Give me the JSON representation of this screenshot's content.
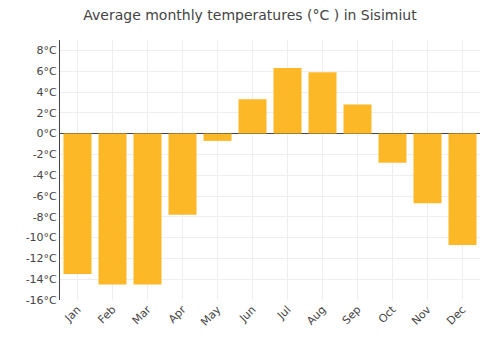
{
  "chart_data": {
    "type": "bar",
    "title": "Average monthly temperatures (°C ) in Sisimiut",
    "categories": [
      "Jan",
      "Feb",
      "Mar",
      "Apr",
      "May",
      "Jun",
      "Jul",
      "Aug",
      "Sep",
      "Oct",
      "Nov",
      "Dec"
    ],
    "values": [
      -13.5,
      -14.5,
      -14.5,
      -7.8,
      -0.7,
      3.3,
      6.3,
      5.9,
      2.8,
      -2.8,
      -6.7,
      -10.7
    ],
    "color": "#FDB827",
    "ylim": [
      -16,
      9
    ],
    "yticks": [
      {
        "value": -16,
        "label": "-16°C"
      },
      {
        "value": -14,
        "label": "-14°C"
      },
      {
        "value": -12,
        "label": "-12°C"
      },
      {
        "value": -10,
        "label": "-10°C"
      },
      {
        "value": -8,
        "label": "-8°C"
      },
      {
        "value": -6,
        "label": "-6°C"
      },
      {
        "value": -4,
        "label": "-4°C"
      },
      {
        "value": -2,
        "label": "-2°C"
      },
      {
        "value": 0,
        "label": "0°C"
      },
      {
        "value": 2,
        "label": "2°C"
      },
      {
        "value": 4,
        "label": "4°C"
      },
      {
        "value": 6,
        "label": "6°C"
      },
      {
        "value": 8,
        "label": "8°C"
      }
    ],
    "grid": true
  }
}
